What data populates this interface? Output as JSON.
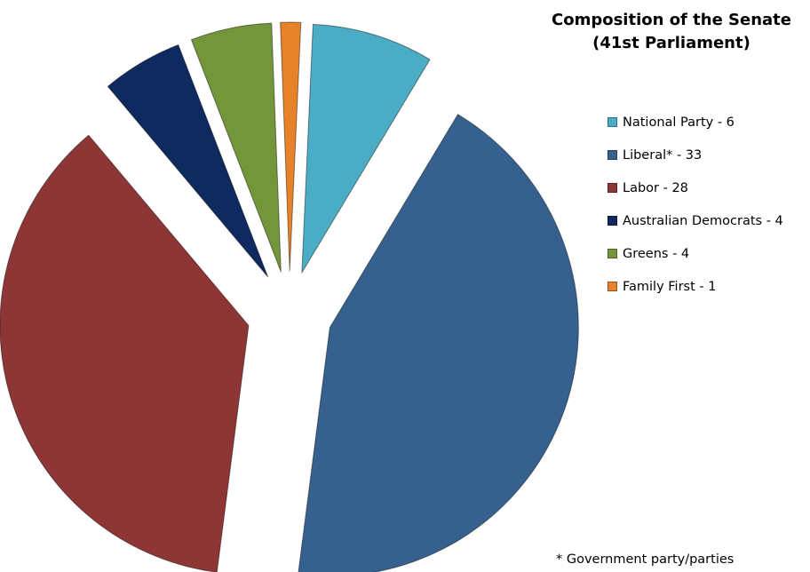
{
  "chart_data": {
    "type": "pie",
    "title": "Composition of the Senate",
    "subtitle": "(41st Parliament)",
    "legend_position": "right",
    "exploded": true,
    "slices": [
      {
        "label": "National Party - 6",
        "value": 6,
        "color": "#4BACC6"
      },
      {
        "label": "Liberal* - 33",
        "value": 33,
        "color": "#36618F"
      },
      {
        "label": "Labor - 28",
        "value": 28,
        "color": "#8E3535"
      },
      {
        "label": "Australian Democrats - 4",
        "value": 4,
        "color": "#0E2A5E"
      },
      {
        "label": "Greens - 4",
        "value": 4,
        "color": "#73963B"
      },
      {
        "label": "Family First - 1",
        "value": 1,
        "color": "#E8822A"
      }
    ],
    "footnote": "* Government party/parties"
  }
}
